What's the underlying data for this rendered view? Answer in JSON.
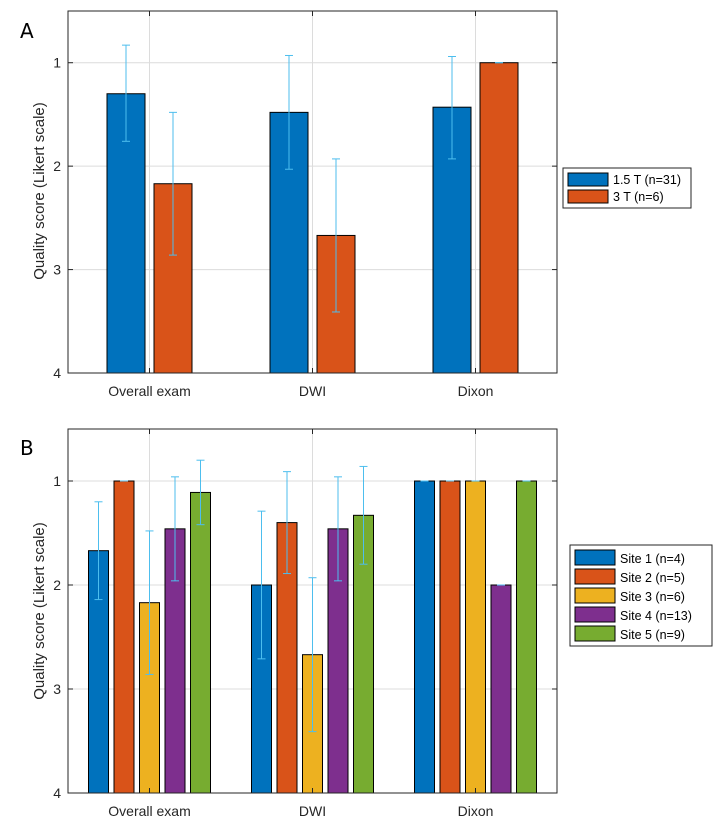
{
  "chart_data": [
    {
      "type": "bar",
      "panel_label": "A",
      "categories": [
        "Overall exam",
        "DWI",
        "Dixon"
      ],
      "ylabel": "Quality score (Likert scale)",
      "ylim": [
        0.5,
        4
      ],
      "y_direction": "reversed",
      "yticks": [
        1,
        2,
        3,
        4
      ],
      "grid": true,
      "legend_position": "outside-right",
      "series": [
        {
          "name": "1.5 T (n=31)",
          "color": "#0072BD",
          "values": [
            1.3,
            1.48,
            1.43
          ],
          "err_low": [
            0.83,
            0.93,
            0.94
          ],
          "err_high": [
            1.76,
            2.03,
            1.93
          ]
        },
        {
          "name": "3 T (n=6)",
          "color": "#D95319",
          "values": [
            2.17,
            2.67,
            1.0
          ],
          "err_low": [
            1.48,
            1.93,
            1.0
          ],
          "err_high": [
            2.86,
            3.41,
            1.0
          ]
        }
      ]
    },
    {
      "type": "bar",
      "panel_label": "B",
      "categories": [
        "Overall exam",
        "DWI",
        "Dixon"
      ],
      "ylabel": "Quality score (Likert scale)",
      "ylim": [
        0.5,
        4
      ],
      "y_direction": "reversed",
      "yticks": [
        1,
        2,
        3,
        4
      ],
      "grid": true,
      "legend_position": "outside-right",
      "series": [
        {
          "name": "Site 1 (n=4)",
          "color": "#0072BD",
          "values": [
            1.67,
            2.0,
            1.0
          ],
          "err_low": [
            1.2,
            1.29,
            1.0
          ],
          "err_high": [
            2.14,
            2.71,
            1.0
          ]
        },
        {
          "name": "Site 2 (n=5)",
          "color": "#D95319",
          "values": [
            1.0,
            1.4,
            1.0
          ],
          "err_low": [
            1.0,
            0.91,
            1.0
          ],
          "err_high": [
            1.0,
            1.89,
            1.0
          ]
        },
        {
          "name": "Site 3 (n=6)",
          "color": "#EDB120",
          "values": [
            2.17,
            2.67,
            1.0
          ],
          "err_low": [
            1.48,
            1.93,
            1.0
          ],
          "err_high": [
            2.86,
            3.41,
            1.0
          ]
        },
        {
          "name": "Site 4 (n=13)",
          "color": "#7E2F8E",
          "values": [
            1.46,
            1.46,
            2.0
          ],
          "err_low": [
            0.96,
            0.96,
            2.0
          ],
          "err_high": [
            1.96,
            1.96,
            2.0
          ]
        },
        {
          "name": "Site 5 (n=9)",
          "color": "#77AC30",
          "values": [
            1.11,
            1.33,
            1.0
          ],
          "err_low": [
            0.8,
            0.86,
            1.0
          ],
          "err_high": [
            1.42,
            1.8,
            1.0
          ]
        }
      ]
    }
  ]
}
